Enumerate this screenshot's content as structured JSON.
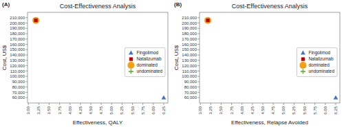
{
  "chart_data": [
    {
      "type": "scatter",
      "title": "Cost-Effectiveness Analysis",
      "annotations": [
        "(A)"
      ],
      "xlabel": "Effectiveness, QALY",
      "ylabel": "Cost, US$",
      "xlim": [
        2.98,
        6.35
      ],
      "ylim": [
        50000,
        220000
      ],
      "xticks": [
        {
          "value": 3.0,
          "label": "3.00"
        },
        3.25,
        {
          "value": 3.5,
          "label": "3.50"
        },
        3.75,
        {
          "value": 4.0,
          "label": "4.00"
        },
        4.25,
        {
          "value": 4.5,
          "label": "4.50"
        },
        4.75,
        {
          "value": 5.0,
          "label": "5.00"
        },
        5.25,
        {
          "value": 5.5,
          "label": "5.50"
        },
        5.75,
        {
          "value": 6.0,
          "label": "6.00"
        },
        6.25
      ],
      "yticks": [
        {
          "value": 60000,
          "label": "60,000"
        },
        {
          "value": 70000,
          "label": "70,000"
        },
        {
          "value": 80000,
          "label": "80,000"
        },
        {
          "value": 90000,
          "label": "90,000"
        },
        {
          "value": 100000,
          "label": "100,000"
        },
        {
          "value": 110000,
          "label": "110,000"
        },
        {
          "value": 120000,
          "label": "120,000"
        },
        {
          "value": 130000,
          "label": "130,000"
        },
        {
          "value": 140000,
          "label": "140,000"
        },
        {
          "value": 150000,
          "label": "150,000"
        },
        {
          "value": 160000,
          "label": "160,000"
        },
        {
          "value": 170000,
          "label": "170,000"
        },
        {
          "value": 180000,
          "label": "180,000"
        },
        {
          "value": 190000,
          "label": "190,000"
        },
        {
          "value": 200000,
          "label": "200,000"
        },
        {
          "value": 210000,
          "label": "210,000"
        }
      ],
      "grid": false,
      "legend": "right",
      "series": [
        {
          "name": "Fingolimod",
          "color": "#4472c4",
          "marker": "triangle",
          "x": [
            6.25
          ],
          "values": [
            60000
          ]
        },
        {
          "name": "Natalizumab",
          "color": "#c00000",
          "marker": "square",
          "x": [
            3.18
          ],
          "values": [
            205000
          ]
        },
        {
          "name": "dominated",
          "color": "#f4a015",
          "marker": "circle",
          "x": [
            3.18
          ],
          "values": [
            205000
          ]
        },
        {
          "name": "undominated",
          "color": "#70ad47",
          "marker": "plus",
          "x": [],
          "values": []
        }
      ]
    },
    {
      "type": "scatter",
      "title": "Cost-Effectiveness Analysis",
      "annotations": [
        "(B)"
      ],
      "xlabel": "Effectiveness, Relapse Avoided",
      "ylabel": "Cost, US$",
      "xlim": [
        2.98,
        6.35
      ],
      "ylim": [
        50000,
        220000
      ],
      "xticks": [
        {
          "value": 3.0,
          "label": "3.00"
        },
        3.25,
        {
          "value": 3.5,
          "label": "3.50"
        },
        3.75,
        {
          "value": 4.0,
          "label": "4.00"
        },
        4.25,
        {
          "value": 4.5,
          "label": "4.50"
        },
        4.75,
        {
          "value": 5.0,
          "label": "5.00"
        },
        5.25,
        {
          "value": 5.5,
          "label": "5.50"
        },
        5.75,
        {
          "value": 6.0,
          "label": "6.00"
        },
        6.25
      ],
      "yticks": [
        {
          "value": 60000,
          "label": "60,000"
        },
        {
          "value": 70000,
          "label": "70,000"
        },
        {
          "value": 80000,
          "label": "80,000"
        },
        {
          "value": 90000,
          "label": "90,000"
        },
        {
          "value": 100000,
          "label": "100,000"
        },
        {
          "value": 110000,
          "label": "110,000"
        },
        {
          "value": 120000,
          "label": "120,000"
        },
        {
          "value": 130000,
          "label": "130,000"
        },
        {
          "value": 140000,
          "label": "140,000"
        },
        {
          "value": 150000,
          "label": "150,000"
        },
        {
          "value": 160000,
          "label": "160,000"
        },
        {
          "value": 170000,
          "label": "170,000"
        },
        {
          "value": 180000,
          "label": "180,000"
        },
        {
          "value": 190000,
          "label": "190,000"
        },
        {
          "value": 200000,
          "label": "200,000"
        },
        {
          "value": 210000,
          "label": "210,000"
        }
      ],
      "grid": false,
      "legend": "right",
      "series": [
        {
          "name": "Fingolimod",
          "color": "#4472c4",
          "marker": "triangle",
          "x": [
            6.25
          ],
          "values": [
            60000
          ]
        },
        {
          "name": "Natalizumab",
          "color": "#c00000",
          "marker": "square",
          "x": [
            3.18
          ],
          "values": [
            205000
          ]
        },
        {
          "name": "dominated",
          "color": "#f4a015",
          "marker": "circle",
          "x": [
            3.18
          ],
          "values": [
            205000
          ]
        },
        {
          "name": "undominated",
          "color": "#70ad47",
          "marker": "plus",
          "x": [],
          "values": []
        }
      ]
    }
  ]
}
